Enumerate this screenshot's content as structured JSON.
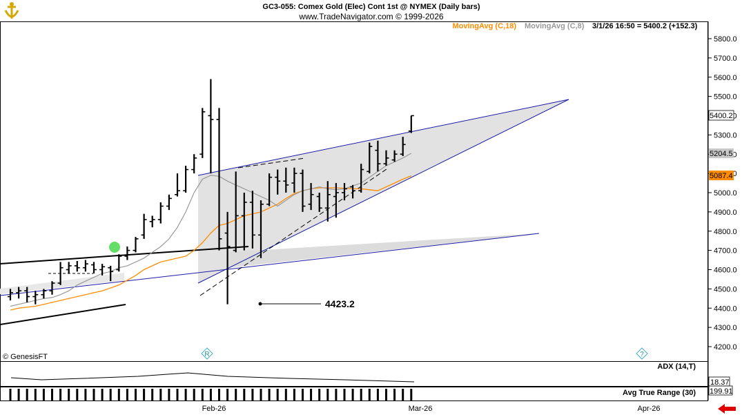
{
  "header": {
    "title": "GC3-055:  Comex Gold (Elec) Cont 1st @ NYMEX  (Daily bars)",
    "subtitle": "www.TradeNavigator.com © 1999-2026"
  },
  "legend": {
    "ma18": "MovingAvg (C,18)",
    "ma8": "MovingAvg (C,8)",
    "last": "3/1/26 16:50 = 5400.2 (+152.3)",
    "ma18_color": "#ff8c00",
    "ma8_color": "#999999"
  },
  "badges": {
    "last": "5400.2",
    "ma8": "5204.5",
    "ma18": "5087.4",
    "adx": "18.37",
    "atr": "199.91"
  },
  "annotation": {
    "text": "4423.2",
    "value": 4423.2
  },
  "copyright": "© GenesisFT",
  "icons": {
    "r_marker": "R",
    "q_marker": "?"
  },
  "panels": {
    "adx_label": "ADX (14,T)",
    "atr_label": "Avg True Range (30)"
  },
  "xaxis": {
    "labels": [
      "Feb-26",
      "Mar-26",
      "Apr-26"
    ]
  },
  "chart_data": {
    "type": "ohlc",
    "title": "GC3-055:  Comex Gold (Elec) Cont 1st @ NYMEX  (Daily bars)",
    "ylim": [
      4130,
      5870
    ],
    "yticks": [
      4200,
      4300,
      4400,
      4500,
      4600,
      4700,
      4800,
      4900,
      5000,
      5100,
      5200,
      5300,
      5400,
      5500,
      5600,
      5700,
      5800
    ],
    "ytick_labels": [
      "4200.0",
      "4300.0",
      "4400.0",
      "4500.0",
      "4600.0",
      "4700.0",
      "4800.0",
      "4900.0",
      "5000.0",
      "5100.0",
      "5200.0",
      "5300.0",
      "5400.0",
      "5500.0",
      "5600.0",
      "5700.0",
      "5800.0"
    ],
    "x_labels": [
      "Feb-26",
      "Mar-26",
      "Apr-26"
    ],
    "series": [
      {
        "name": "Daily bars",
        "bars": [
          {
            "o": 4460,
            "h": 4500,
            "l": 4440,
            "c": 4480
          },
          {
            "o": 4480,
            "h": 4510,
            "l": 4450,
            "c": 4490
          },
          {
            "o": 4490,
            "h": 4510,
            "l": 4430,
            "c": 4460
          },
          {
            "o": 4460,
            "h": 4490,
            "l": 4420,
            "c": 4470
          },
          {
            "o": 4470,
            "h": 4500,
            "l": 4450,
            "c": 4490
          },
          {
            "o": 4490,
            "h": 4540,
            "l": 4470,
            "c": 4530
          },
          {
            "o": 4530,
            "h": 4640,
            "l": 4520,
            "c": 4610
          },
          {
            "o": 4600,
            "h": 4640,
            "l": 4580,
            "c": 4620
          },
          {
            "o": 4620,
            "h": 4645,
            "l": 4590,
            "c": 4610
          },
          {
            "o": 4610,
            "h": 4650,
            "l": 4590,
            "c": 4630
          },
          {
            "o": 4625,
            "h": 4640,
            "l": 4580,
            "c": 4600
          },
          {
            "o": 4600,
            "h": 4630,
            "l": 4570,
            "c": 4615
          },
          {
            "o": 4610,
            "h": 4620,
            "l": 4540,
            "c": 4590
          },
          {
            "o": 4600,
            "h": 4680,
            "l": 4590,
            "c": 4670
          },
          {
            "o": 4670,
            "h": 4720,
            "l": 4650,
            "c": 4700
          },
          {
            "o": 4700,
            "h": 4770,
            "l": 4690,
            "c": 4760
          },
          {
            "o": 4780,
            "h": 4890,
            "l": 4760,
            "c": 4860
          },
          {
            "o": 4850,
            "h": 4880,
            "l": 4820,
            "c": 4860
          },
          {
            "o": 4860,
            "h": 4950,
            "l": 4840,
            "c": 4930
          },
          {
            "o": 4930,
            "h": 4990,
            "l": 4910,
            "c": 4970
          },
          {
            "o": 4990,
            "h": 5100,
            "l": 4980,
            "c": 5010
          },
          {
            "o": 5010,
            "h": 5140,
            "l": 5000,
            "c": 5120
          },
          {
            "o": 5120,
            "h": 5200,
            "l": 5100,
            "c": 5180
          },
          {
            "o": 5200,
            "h": 5440,
            "l": 5180,
            "c": 5420
          },
          {
            "o": 5400,
            "h": 5590,
            "l": 5100,
            "c": 5380
          },
          {
            "o": 5380,
            "h": 5440,
            "l": 4700,
            "c": 4760
          },
          {
            "o": 4790,
            "h": 4900,
            "l": 4420,
            "c": 4720
          },
          {
            "o": 4700,
            "h": 5110,
            "l": 4690,
            "c": 4880
          },
          {
            "o": 4880,
            "h": 5000,
            "l": 4700,
            "c": 4950
          },
          {
            "o": 4950,
            "h": 5010,
            "l": 4710,
            "c": 4780
          },
          {
            "o": 4780,
            "h": 4960,
            "l": 4660,
            "c": 4940
          },
          {
            "o": 4940,
            "h": 5100,
            "l": 4930,
            "c": 5080
          },
          {
            "o": 5080,
            "h": 5120,
            "l": 4990,
            "c": 5060
          },
          {
            "o": 5060,
            "h": 5130,
            "l": 5000,
            "c": 5040
          },
          {
            "o": 5050,
            "h": 5130,
            "l": 5000,
            "c": 5100
          },
          {
            "o": 5100,
            "h": 5120,
            "l": 4900,
            "c": 4930
          },
          {
            "o": 4940,
            "h": 5050,
            "l": 4910,
            "c": 4990
          },
          {
            "o": 4980,
            "h": 5000,
            "l": 4900,
            "c": 4920
          },
          {
            "o": 4920,
            "h": 5060,
            "l": 4850,
            "c": 4990
          },
          {
            "o": 4980,
            "h": 5050,
            "l": 4870,
            "c": 5000
          },
          {
            "o": 5000,
            "h": 5050,
            "l": 4960,
            "c": 5020
          },
          {
            "o": 5030,
            "h": 5040,
            "l": 4970,
            "c": 5010
          },
          {
            "o": 5010,
            "h": 5150,
            "l": 5000,
            "c": 5120
          },
          {
            "o": 5110,
            "h": 5260,
            "l": 5100,
            "c": 5240
          },
          {
            "o": 5220,
            "h": 5270,
            "l": 5110,
            "c": 5150
          },
          {
            "o": 5150,
            "h": 5220,
            "l": 5140,
            "c": 5180
          },
          {
            "o": 5170,
            "h": 5220,
            "l": 5160,
            "c": 5200
          },
          {
            "o": 5200,
            "h": 5290,
            "l": 5190,
            "c": 5250
          },
          {
            "o": 5320,
            "h": 5400,
            "l": 5310,
            "c": 5400
          }
        ]
      },
      {
        "name": "MovingAvg (C,18)",
        "color": "#ff8c00",
        "values": [
          4390,
          4400,
          4405,
          4410,
          4420,
          4430,
          4440,
          4450,
          4460,
          4470,
          4480,
          4490,
          4505,
          4520,
          4545,
          4570,
          4600,
          4620,
          4640,
          4650,
          4660,
          4670,
          4700,
          4740,
          4790,
          4830,
          4840,
          4860,
          4880,
          4890,
          4900,
          4920,
          4940,
          4970,
          4995,
          5010,
          5020,
          5025,
          5025,
          5025,
          5023,
          5020,
          5020,
          5015,
          5010,
          5030,
          5050,
          5070,
          5087.4
        ]
      },
      {
        "name": "MovingAvg (C,8)",
        "color": "#999999",
        "values": [
          4410,
          4420,
          4430,
          4440,
          4450,
          4455,
          4470,
          4490,
          4520,
          4540,
          4560,
          4580,
          4590,
          4610,
          4620,
          4640,
          4660,
          4690,
          4720,
          4760,
          4820,
          4900,
          5000,
          5070,
          5090,
          5085,
          5060,
          5040,
          5020,
          5000,
          4980,
          4960,
          4930,
          4960,
          4990,
          5010,
          5020,
          5030,
          5020,
          5015,
          5020,
          5035,
          5050,
          5080,
          5110,
          5140,
          5160,
          5180,
          5204.5
        ]
      }
    ],
    "annotation": {
      "text": "4423.2",
      "value": 4423.2
    },
    "indicators": [
      {
        "name": "ADX (14,T)",
        "last": 18.37
      },
      {
        "name": "Avg True Range (30)",
        "last": 199.91
      }
    ]
  }
}
